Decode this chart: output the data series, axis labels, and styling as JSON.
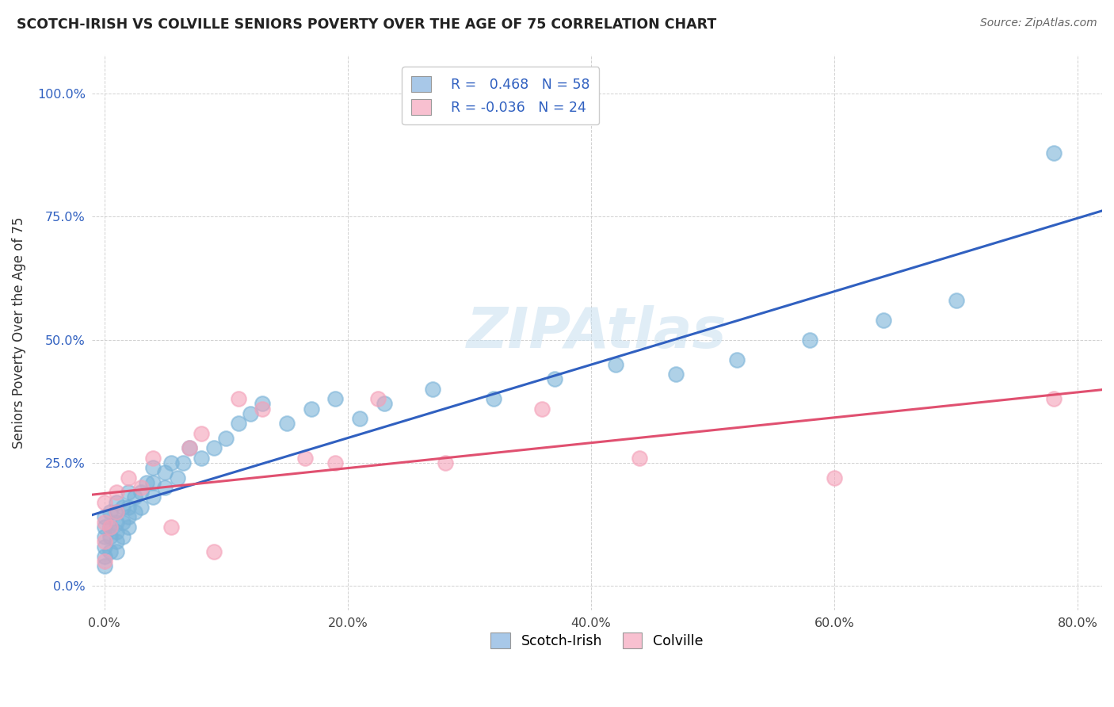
{
  "title": "SCOTCH-IRISH VS COLVILLE SENIORS POVERTY OVER THE AGE OF 75 CORRELATION CHART",
  "source": "Source: ZipAtlas.com",
  "xlim": [
    -0.01,
    0.82
  ],
  "ylim": [
    -0.05,
    1.08
  ],
  "scotch_irish_R": 0.468,
  "scotch_irish_N": 58,
  "colville_R": -0.036,
  "colville_N": 24,
  "scotch_irish_color": "#7ab3d8",
  "colville_color": "#f4a0b8",
  "scotch_irish_line_color": "#3060c0",
  "colville_line_color": "#e05070",
  "legend_scotch_fill": "#a8c8e8",
  "legend_colville_fill": "#f8c0d0",
  "watermark_color": "#c8dff0",
  "scotch_irish_x": [
    0.0,
    0.0,
    0.0,
    0.0,
    0.0,
    0.0,
    0.005,
    0.005,
    0.005,
    0.005,
    0.01,
    0.01,
    0.01,
    0.01,
    0.01,
    0.01,
    0.015,
    0.015,
    0.015,
    0.02,
    0.02,
    0.02,
    0.02,
    0.025,
    0.025,
    0.03,
    0.03,
    0.035,
    0.04,
    0.04,
    0.04,
    0.05,
    0.05,
    0.055,
    0.06,
    0.065,
    0.07,
    0.08,
    0.09,
    0.1,
    0.11,
    0.12,
    0.13,
    0.15,
    0.17,
    0.19,
    0.21,
    0.23,
    0.27,
    0.32,
    0.37,
    0.42,
    0.47,
    0.52,
    0.58,
    0.64,
    0.7,
    0.78
  ],
  "scotch_irish_y": [
    0.04,
    0.06,
    0.08,
    0.1,
    0.12,
    0.14,
    0.07,
    0.1,
    0.12,
    0.15,
    0.07,
    0.09,
    0.11,
    0.13,
    0.15,
    0.17,
    0.1,
    0.13,
    0.16,
    0.12,
    0.14,
    0.16,
    0.19,
    0.15,
    0.18,
    0.16,
    0.19,
    0.21,
    0.18,
    0.21,
    0.24,
    0.2,
    0.23,
    0.25,
    0.22,
    0.25,
    0.28,
    0.26,
    0.28,
    0.3,
    0.33,
    0.35,
    0.37,
    0.33,
    0.36,
    0.38,
    0.34,
    0.37,
    0.4,
    0.38,
    0.42,
    0.45,
    0.43,
    0.46,
    0.5,
    0.54,
    0.58,
    0.88
  ],
  "colville_x": [
    0.0,
    0.0,
    0.0,
    0.0,
    0.005,
    0.01,
    0.01,
    0.02,
    0.03,
    0.04,
    0.055,
    0.07,
    0.08,
    0.09,
    0.11,
    0.13,
    0.165,
    0.19,
    0.225,
    0.28,
    0.36,
    0.44,
    0.6,
    0.78
  ],
  "colville_y": [
    0.05,
    0.09,
    0.13,
    0.17,
    0.12,
    0.15,
    0.19,
    0.22,
    0.2,
    0.26,
    0.12,
    0.28,
    0.31,
    0.07,
    0.38,
    0.36,
    0.26,
    0.25,
    0.38,
    0.25,
    0.36,
    0.26,
    0.22,
    0.38
  ],
  "x_ticks": [
    0.0,
    0.2,
    0.4,
    0.6,
    0.8
  ],
  "y_ticks": [
    0.0,
    0.25,
    0.5,
    0.75,
    1.0
  ]
}
